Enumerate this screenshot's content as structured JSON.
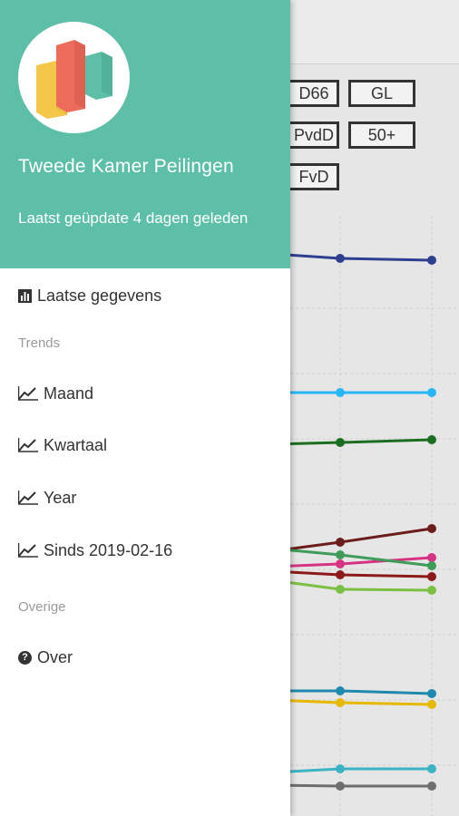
{
  "drawer": {
    "app_title": "Tweede Kamer Peilingen",
    "update_text": "Laatst geüpdate 4 dagen geleden",
    "latest_label": "Laatse gegevens",
    "trends_label": "Trends",
    "trend_items": [
      "Maand",
      "Kwartaal",
      "Year",
      "Sinds 2019-02-16"
    ],
    "other_label": "Overige",
    "about_label": "Over"
  },
  "background": {
    "party_chips": [
      {
        "label": "D66",
        "color": "#4caf50"
      },
      {
        "label": "GL",
        "color": "#1b5e20"
      },
      {
        "label": "PvdD",
        "color": "#d4b800"
      },
      {
        "label": "50+",
        "color": "#c78a2b"
      },
      {
        "label": "FvD",
        "color": "#6d1c1c"
      }
    ],
    "series_colors": [
      "#2e3f8f",
      "#29b6f6",
      "#1b6e20",
      "#6d1c1c",
      "#d63384",
      "#3e9b5a",
      "#8b1a1a",
      "#7cc043",
      "#1f8aad",
      "#e6b800",
      "#3bb3c3",
      "#6e6e6e"
    ]
  },
  "logo_colors": {
    "yellow": "#f4c74a",
    "red": "#ec6b5b",
    "teal": "#5ebfa9"
  }
}
